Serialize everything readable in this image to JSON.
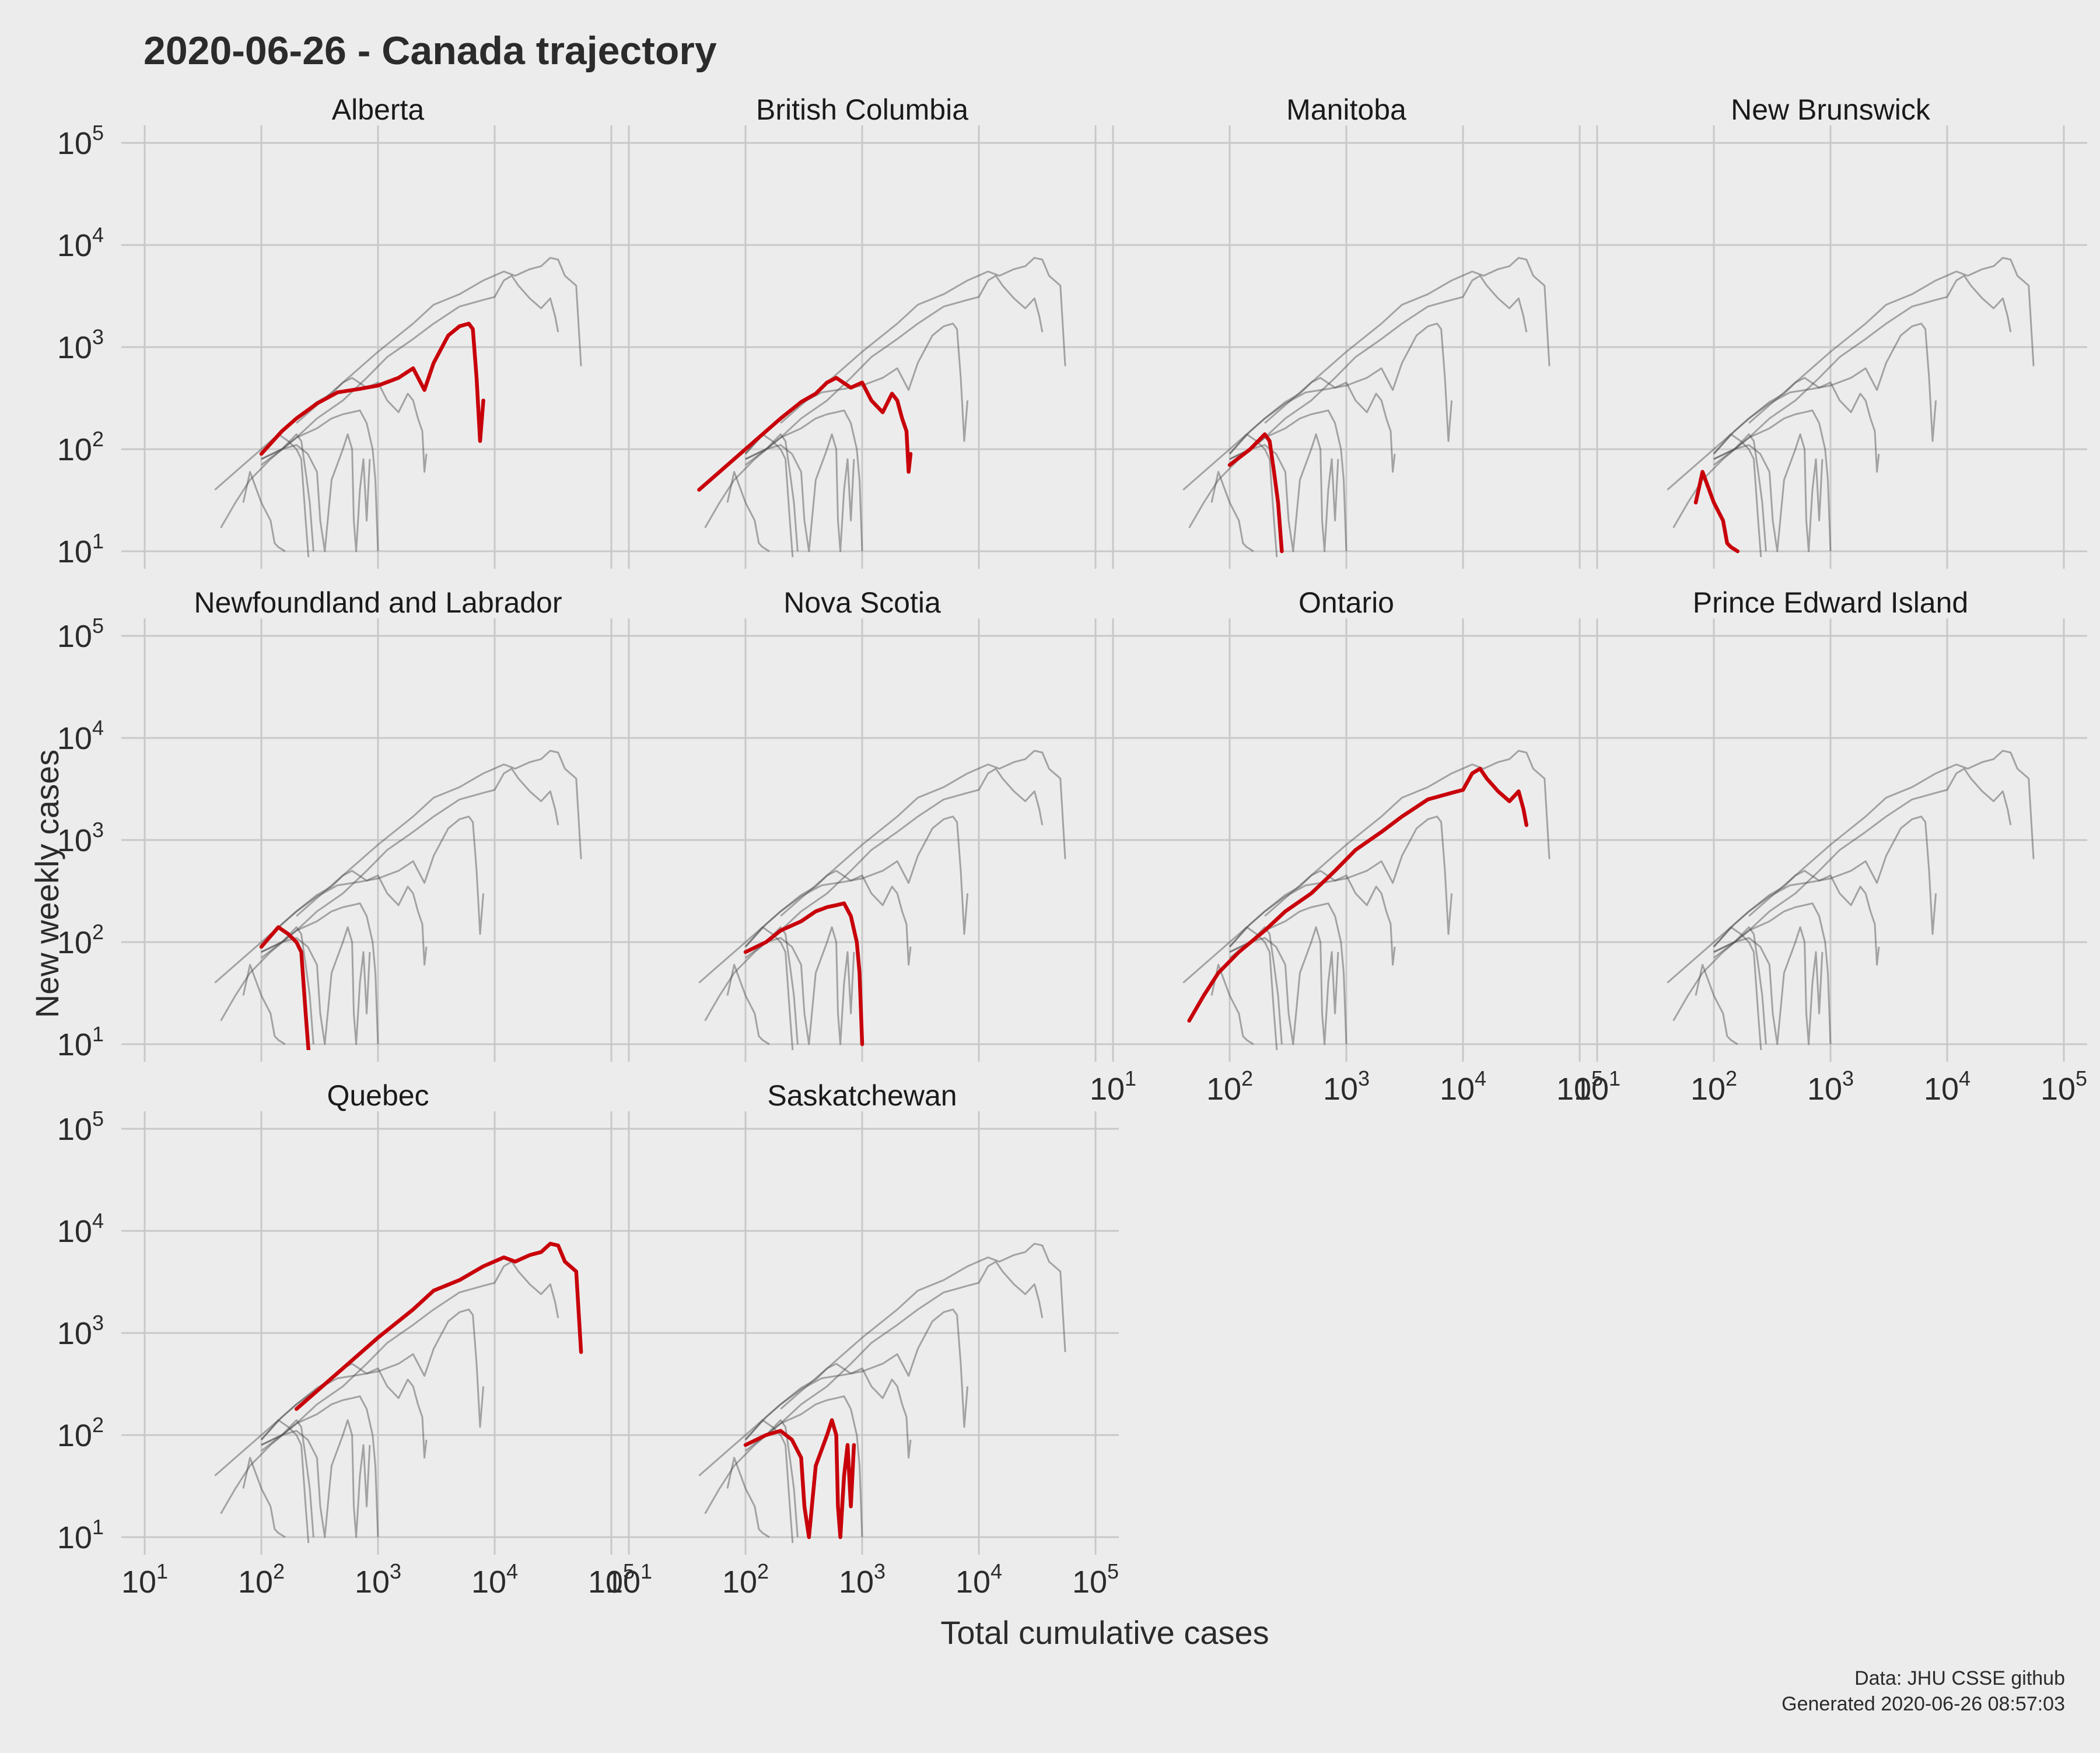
{
  "title": "2020-06-26 - Canada trajectory",
  "caption": [
    "Data: JHU CSSE github",
    "Generated 2020-06-26 08:57:03"
  ],
  "colors": {
    "background": "#ececec",
    "grid": "#c8c8c8",
    "highlight": "#c8000a",
    "context": "#4a4a4a"
  },
  "chart_data": {
    "type": "line",
    "layout": "small-multiples",
    "xlabel": "Total cumulative cases",
    "ylabel": "New weekly cases",
    "xscale": "log",
    "yscale": "log",
    "xlim": [
      10,
      100000
    ],
    "ylim": [
      10,
      100000
    ],
    "ticks": [
      10,
      100,
      1000,
      10000,
      100000
    ],
    "grid": true,
    "panels": [
      "Alberta",
      "British Columbia",
      "Manitoba",
      "New Brunswick",
      "Newfoundland and Labrador",
      "Nova Scotia",
      "Ontario",
      "Prince Edward Island",
      "Quebec",
      "Saskatchewan"
    ],
    "series": [
      {
        "name": "Alberta",
        "points": [
          [
            100,
            90
          ],
          [
            150,
            150
          ],
          [
            200,
            200
          ],
          [
            300,
            280
          ],
          [
            450,
            360
          ],
          [
            700,
            390
          ],
          [
            1000,
            420
          ],
          [
            1500,
            500
          ],
          [
            2000,
            620
          ],
          [
            2500,
            380
          ],
          [
            3000,
            700
          ],
          [
            4000,
            1300
          ],
          [
            5000,
            1600
          ],
          [
            6000,
            1700
          ],
          [
            6500,
            1500
          ],
          [
            7000,
            500
          ],
          [
            7500,
            120
          ],
          [
            8000,
            300
          ]
        ]
      },
      {
        "name": "British Columbia",
        "points": [
          [
            40,
            40
          ],
          [
            60,
            60
          ],
          [
            100,
            100
          ],
          [
            150,
            150
          ],
          [
            200,
            200
          ],
          [
            300,
            290
          ],
          [
            400,
            350
          ],
          [
            500,
            450
          ],
          [
            600,
            500
          ],
          [
            800,
            400
          ],
          [
            1000,
            450
          ],
          [
            1200,
            300
          ],
          [
            1500,
            230
          ],
          [
            1800,
            350
          ],
          [
            2000,
            300
          ],
          [
            2200,
            200
          ],
          [
            2400,
            150
          ],
          [
            2500,
            60
          ],
          [
            2600,
            90
          ]
        ]
      },
      {
        "name": "Manitoba",
        "points": [
          [
            100,
            70
          ],
          [
            150,
            100
          ],
          [
            200,
            140
          ],
          [
            220,
            120
          ],
          [
            240,
            60
          ],
          [
            260,
            30
          ],
          [
            280,
            10
          ]
        ]
      },
      {
        "name": "New Brunswick",
        "points": [
          [
            70,
            30
          ],
          [
            80,
            60
          ],
          [
            100,
            30
          ],
          [
            120,
            20
          ],
          [
            130,
            12
          ],
          [
            140,
            11
          ],
          [
            160,
            10
          ]
        ]
      },
      {
        "name": "Newfoundland and Labrador",
        "points": [
          [
            100,
            90
          ],
          [
            140,
            140
          ],
          [
            170,
            120
          ],
          [
            200,
            100
          ],
          [
            220,
            80
          ],
          [
            240,
            20
          ],
          [
            260,
            6
          ]
        ]
      },
      {
        "name": "Nova Scotia",
        "points": [
          [
            100,
            80
          ],
          [
            150,
            100
          ],
          [
            200,
            130
          ],
          [
            300,
            160
          ],
          [
            400,
            200
          ],
          [
            500,
            220
          ],
          [
            600,
            230
          ],
          [
            700,
            240
          ],
          [
            800,
            180
          ],
          [
            900,
            100
          ],
          [
            950,
            50
          ],
          [
            1000,
            10
          ]
        ]
      },
      {
        "name": "Ontario",
        "points": [
          [
            45,
            17
          ],
          [
            60,
            30
          ],
          [
            80,
            50
          ],
          [
            120,
            80
          ],
          [
            200,
            130
          ],
          [
            300,
            200
          ],
          [
            500,
            300
          ],
          [
            800,
            500
          ],
          [
            1200,
            800
          ],
          [
            2000,
            1200
          ],
          [
            3000,
            1700
          ],
          [
            5000,
            2500
          ],
          [
            8000,
            2900
          ],
          [
            10000,
            3100
          ],
          [
            12000,
            4500
          ],
          [
            14000,
            5000
          ],
          [
            16000,
            4000
          ],
          [
            20000,
            3000
          ],
          [
            25000,
            2400
          ],
          [
            30000,
            3000
          ],
          [
            33000,
            2000
          ],
          [
            35000,
            1400
          ]
        ]
      },
      {
        "name": "Prince Edward Island",
        "points": []
      },
      {
        "name": "Quebec",
        "points": [
          [
            200,
            180
          ],
          [
            300,
            270
          ],
          [
            500,
            450
          ],
          [
            1000,
            900
          ],
          [
            2000,
            1700
          ],
          [
            3000,
            2600
          ],
          [
            5000,
            3300
          ],
          [
            8000,
            4500
          ],
          [
            12000,
            5500
          ],
          [
            15000,
            5000
          ],
          [
            20000,
            5800
          ],
          [
            25000,
            6200
          ],
          [
            30000,
            7500
          ],
          [
            35000,
            7200
          ],
          [
            40000,
            5000
          ],
          [
            50000,
            4000
          ],
          [
            55000,
            650
          ]
        ]
      },
      {
        "name": "Saskatchewan",
        "points": [
          [
            100,
            80
          ],
          [
            150,
            100
          ],
          [
            200,
            110
          ],
          [
            250,
            90
          ],
          [
            300,
            60
          ],
          [
            320,
            20
          ],
          [
            350,
            10
          ],
          [
            400,
            50
          ],
          [
            500,
            100
          ],
          [
            550,
            140
          ],
          [
            600,
            100
          ],
          [
            620,
            20
          ],
          [
            650,
            10
          ],
          [
            700,
            40
          ],
          [
            750,
            80
          ],
          [
            800,
            20
          ],
          [
            850,
            80
          ]
        ]
      }
    ]
  }
}
